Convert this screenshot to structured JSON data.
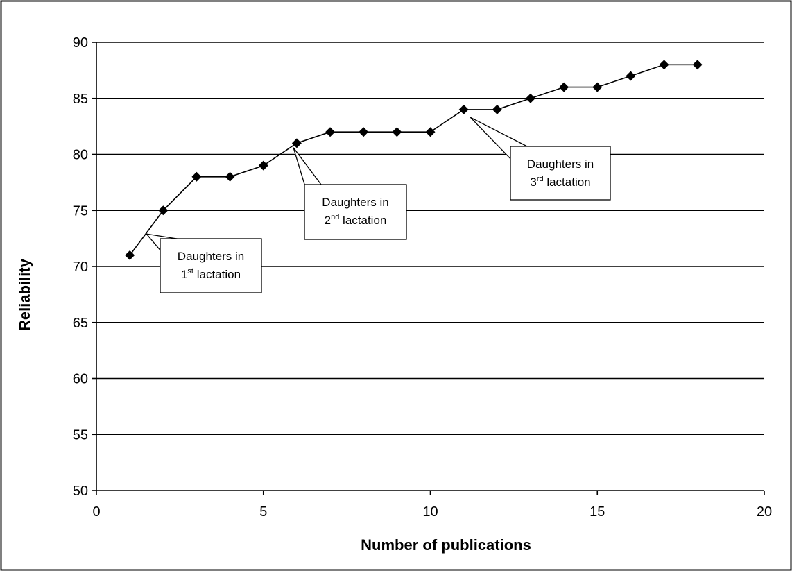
{
  "chart_data": {
    "type": "line",
    "title": "",
    "xlabel": "Number of publications",
    "ylabel": "Reliability",
    "xlim": [
      0,
      20
    ],
    "ylim": [
      50,
      90
    ],
    "x_ticks": [
      "0",
      "5",
      "10",
      "15",
      "20"
    ],
    "y_ticks": [
      "50",
      "55",
      "60",
      "65",
      "70",
      "75",
      "80",
      "85",
      "90"
    ],
    "grid": "horizontal",
    "marker": "diamond",
    "line_color": "#000000",
    "series": [
      {
        "x": [
          1,
          2,
          3,
          4,
          5,
          6,
          7,
          8,
          9,
          10,
          11,
          12,
          13,
          14,
          15,
          16,
          17,
          18
        ],
        "values": [
          71,
          75,
          78,
          78,
          79,
          81,
          82,
          82,
          82,
          82,
          84,
          84,
          85,
          86,
          86,
          87,
          88,
          88
        ]
      }
    ],
    "annotations": [
      {
        "line1": "Daughters in",
        "ordinal": "1",
        "sup": "st",
        "rest": " lactation",
        "point_x": 1.5,
        "point_y": 72.9
      },
      {
        "line1": "Daughters in",
        "ordinal": "2",
        "sup": "nd",
        "rest": " lactation",
        "point_x": 5.9,
        "point_y": 80.6
      },
      {
        "line1": "Daughters in",
        "ordinal": "3",
        "sup": "rd",
        "rest": " lactation",
        "point_x": 11.2,
        "point_y": 83.3
      }
    ]
  }
}
